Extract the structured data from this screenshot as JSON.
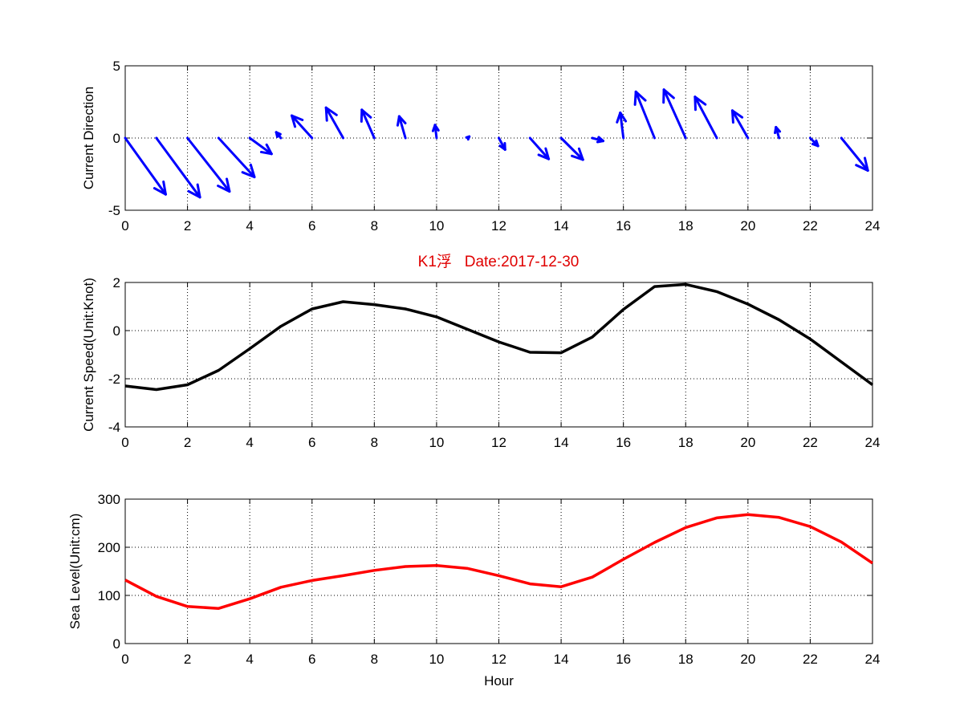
{
  "figure": {
    "title": "K1浮   Date:2017-12-30",
    "title_color": "#e00000",
    "background": "#ffffff"
  },
  "chart_data": [
    {
      "type": "quiver",
      "ylabel": "Current Direction",
      "xlabel": "",
      "xlim": [
        0,
        24
      ],
      "ylim": [
        -5,
        5
      ],
      "xticks": [
        0,
        2,
        4,
        6,
        8,
        10,
        12,
        14,
        16,
        18,
        20,
        22,
        24
      ],
      "yticks": [
        -5,
        0,
        5
      ],
      "grid": true,
      "color": "#0000ff",
      "x": [
        0,
        1,
        2,
        3,
        4,
        5,
        6,
        7,
        8,
        9,
        10,
        11,
        12,
        13,
        14,
        15,
        16,
        17,
        18,
        19,
        20,
        21,
        22,
        23
      ],
      "u": [
        1.3,
        1.4,
        1.35,
        1.15,
        0.7,
        -0.15,
        -0.65,
        -0.55,
        -0.4,
        -0.2,
        -0.05,
        0.05,
        0.2,
        0.6,
        0.7,
        0.35,
        -0.1,
        -0.6,
        -0.7,
        -0.7,
        -0.5,
        -0.1,
        0.25,
        0.85
      ],
      "v": [
        -3.9,
        -4.1,
        -3.7,
        -2.7,
        -1.1,
        0.4,
        1.55,
        2.1,
        1.95,
        1.5,
        0.9,
        0.1,
        -0.8,
        -1.45,
        -1.5,
        -0.2,
        1.75,
        3.2,
        3.35,
        2.85,
        1.9,
        0.75,
        -0.55,
        -2.25
      ]
    },
    {
      "type": "line",
      "ylabel": "Current Speed(Unit:Knot)",
      "xlabel": "",
      "xlim": [
        0,
        24
      ],
      "ylim": [
        -4,
        2
      ],
      "xticks": [
        0,
        2,
        4,
        6,
        8,
        10,
        12,
        14,
        16,
        18,
        20,
        22,
        24
      ],
      "yticks": [
        -4,
        -2,
        0,
        2
      ],
      "grid": true,
      "series": [
        {
          "color": "#000000",
          "x": [
            0,
            1,
            2,
            3,
            4,
            5,
            6,
            7,
            8,
            9,
            10,
            11,
            12,
            13,
            14,
            15,
            16,
            17,
            18,
            19,
            20,
            21,
            22,
            23,
            24
          ],
          "values": [
            -2.3,
            -2.45,
            -2.25,
            -1.65,
            -0.75,
            0.18,
            0.9,
            1.2,
            1.08,
            0.9,
            0.57,
            0.05,
            -0.47,
            -0.9,
            -0.92,
            -0.27,
            0.88,
            1.83,
            1.92,
            1.62,
            1.1,
            0.45,
            -0.35,
            -1.3,
            -2.25
          ]
        }
      ]
    },
    {
      "type": "line",
      "ylabel": "Sea Level(Unit:cm)",
      "xlabel": "Hour",
      "xlim": [
        0,
        24
      ],
      "ylim": [
        0,
        300
      ],
      "xticks": [
        0,
        2,
        4,
        6,
        8,
        10,
        12,
        14,
        16,
        18,
        20,
        22,
        24
      ],
      "yticks": [
        0,
        100,
        200,
        300
      ],
      "grid": true,
      "series": [
        {
          "color": "#ff0000",
          "x": [
            0,
            1,
            2,
            3,
            4,
            5,
            6,
            7,
            8,
            9,
            10,
            11,
            12,
            13,
            14,
            15,
            16,
            17,
            18,
            19,
            20,
            21,
            22,
            23,
            24
          ],
          "values": [
            132,
            98,
            77,
            73,
            93,
            117,
            131,
            141,
            152,
            160,
            162,
            156,
            141,
            124,
            118,
            138,
            175,
            210,
            241,
            261,
            268,
            262,
            243,
            211,
            167
          ]
        }
      ]
    }
  ]
}
